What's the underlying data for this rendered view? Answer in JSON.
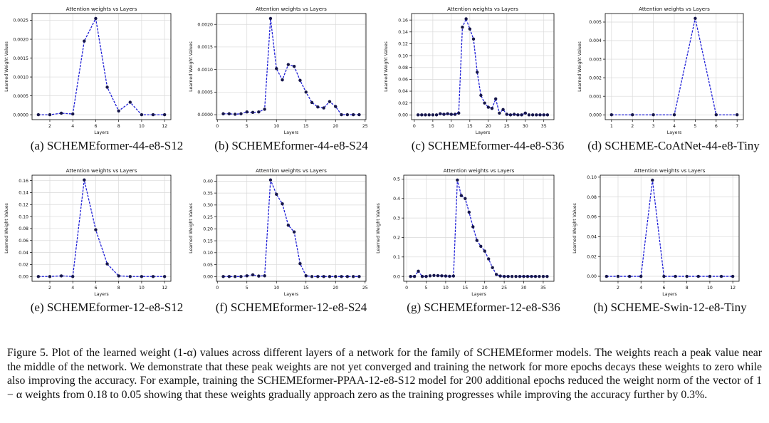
{
  "chart_data": [
    {
      "type": "line",
      "title": "Attention weights vs Layers",
      "xlabel": "Layers",
      "ylabel": "Learned Weight Values",
      "caption": "(a) SCHEMEformer-44-e8-S12",
      "xlim": [
        0.45,
        12.55
      ],
      "ylim": [
        -0.00013,
        0.00268
      ],
      "xticks": [
        2,
        4,
        6,
        8,
        10,
        12
      ],
      "xtick_labels": [
        "2",
        "4",
        "6",
        "8",
        "10",
        "12"
      ],
      "yticks": [
        0,
        0.0005,
        0.001,
        0.0015,
        0.002,
        0.0025
      ],
      "ytick_labels": [
        "0.0000",
        "0.0005",
        "0.0010",
        "0.0015",
        "0.0020",
        "0.0025"
      ],
      "x": [
        1,
        2,
        3,
        4,
        5,
        6,
        7,
        8,
        9,
        10,
        11,
        12
      ],
      "y": [
        0.0,
        0.0,
        4e-05,
        2e-05,
        0.00195,
        0.00255,
        0.00073,
        0.0001,
        0.00033,
        0.0,
        0.0,
        0.0
      ]
    },
    {
      "type": "line",
      "title": "Attention weights vs Layers",
      "xlabel": "Layers",
      "ylabel": "Learned Weight Values",
      "caption": "(b) SCHEMEformer-44-e8-S24",
      "xlim": [
        -0.15,
        25.15
      ],
      "ylim": [
        -0.00011,
        0.00224
      ],
      "xticks": [
        0,
        5,
        10,
        15,
        20,
        25
      ],
      "xtick_labels": [
        "0",
        "5",
        "10",
        "15",
        "20",
        "25"
      ],
      "yticks": [
        0,
        0.0005,
        0.001,
        0.0015,
        0.002
      ],
      "ytick_labels": [
        "0.0000",
        "0.0005",
        "0.0010",
        "0.0015",
        "0.0020"
      ],
      "x": [
        1,
        2,
        3,
        4,
        5,
        6,
        7,
        8,
        9,
        10,
        11,
        12,
        13,
        14,
        15,
        16,
        17,
        18,
        19,
        20,
        21,
        22,
        23,
        24
      ],
      "y": [
        2e-05,
        2e-05,
        1e-05,
        2e-05,
        6e-05,
        5e-05,
        6e-05,
        0.00012,
        0.00213,
        0.00102,
        0.00077,
        0.00111,
        0.00107,
        0.00076,
        0.0005,
        0.00027,
        0.00017,
        0.00015,
        0.00029,
        0.00018,
        0.0,
        0.0,
        0.0,
        0.0
      ]
    },
    {
      "type": "line",
      "title": "Attention weights vs Layers",
      "xlabel": "Layers",
      "ylabel": "Learned Weight Values",
      "caption": "(c) SCHEMEformer-44-e8-S36",
      "xlim": [
        -0.75,
        37.75
      ],
      "ylim": [
        -0.008,
        0.171
      ],
      "xticks": [
        0,
        5,
        10,
        15,
        20,
        25,
        30,
        35
      ],
      "xtick_labels": [
        "0",
        "5",
        "10",
        "15",
        "20",
        "25",
        "30",
        "35"
      ],
      "yticks": [
        0,
        0.02,
        0.04,
        0.06,
        0.08,
        0.1,
        0.12,
        0.14,
        0.16
      ],
      "ytick_labels": [
        "0.00",
        "0.02",
        "0.04",
        "0.06",
        "0.08",
        "0.10",
        "0.12",
        "0.14",
        "0.16"
      ],
      "x": [
        1,
        2,
        3,
        4,
        5,
        6,
        7,
        8,
        9,
        10,
        11,
        12,
        13,
        14,
        15,
        16,
        17,
        18,
        19,
        20,
        21,
        22,
        23,
        24,
        25,
        26,
        27,
        28,
        29,
        30,
        31,
        32,
        33,
        34,
        35,
        36
      ],
      "y": [
        0.0,
        0.0,
        0.0,
        0.0,
        0.0,
        0.0,
        0.002,
        0.001,
        0.002,
        0.001,
        0.001,
        0.003,
        0.148,
        0.162,
        0.145,
        0.128,
        0.072,
        0.033,
        0.02,
        0.013,
        0.011,
        0.027,
        0.003,
        0.009,
        0.001,
        0.0,
        0.001,
        0.0,
        0.0,
        0.003,
        0.0,
        0.0,
        0.0,
        0.0,
        0.0,
        0.0
      ]
    },
    {
      "type": "line",
      "title": "Attention weights vs Layers",
      "xlabel": "Layers",
      "ylabel": "Learned Weight Values",
      "caption": "(d) SCHEME-CoAtNet-44-e8-Tiny",
      "xlim": [
        0.7,
        7.3
      ],
      "ylim": [
        -0.00026,
        0.00546
      ],
      "xticks": [
        1,
        2,
        3,
        4,
        5,
        6,
        7
      ],
      "xtick_labels": [
        "1",
        "2",
        "3",
        "4",
        "5",
        "6",
        "7"
      ],
      "yticks": [
        0,
        0.001,
        0.002,
        0.003,
        0.004,
        0.005
      ],
      "ytick_labels": [
        "0.000",
        "0.001",
        "0.002",
        "0.003",
        "0.004",
        "0.005"
      ],
      "x": [
        1,
        2,
        3,
        4,
        5,
        6,
        7
      ],
      "y": [
        0.0,
        0.0,
        0.0,
        0.0,
        0.0052,
        0.0,
        0.0
      ]
    },
    {
      "type": "line",
      "title": "Attention weights vs Layers",
      "xlabel": "Layers",
      "ylabel": "Learned Weight Values",
      "caption": "(e) SCHEMEformer-12-e8-S12",
      "xlim": [
        0.45,
        12.55
      ],
      "ylim": [
        -0.008,
        0.169
      ],
      "xticks": [
        2,
        4,
        6,
        8,
        10,
        12
      ],
      "xtick_labels": [
        "2",
        "4",
        "6",
        "8",
        "10",
        "12"
      ],
      "yticks": [
        0,
        0.02,
        0.04,
        0.06,
        0.08,
        0.1,
        0.12,
        0.14,
        0.16
      ],
      "ytick_labels": [
        "0.00",
        "0.02",
        "0.04",
        "0.06",
        "0.08",
        "0.10",
        "0.12",
        "0.14",
        "0.16"
      ],
      "x": [
        1,
        2,
        3,
        4,
        5,
        6,
        7,
        8,
        9,
        10,
        11,
        12
      ],
      "y": [
        0.0,
        0.0,
        0.001,
        0.0,
        0.161,
        0.078,
        0.021,
        0.001,
        0.0,
        0.0,
        0.0,
        0.0
      ]
    },
    {
      "type": "line",
      "title": "Attention weights vs Layers",
      "xlabel": "Layers",
      "ylabel": "Learned Weight Values",
      "caption": "(f) SCHEMEformer-12-e8-S24",
      "xlim": [
        -0.15,
        25.15
      ],
      "ylim": [
        -0.02,
        0.425
      ],
      "xticks": [
        0,
        5,
        10,
        15,
        20,
        25
      ],
      "xtick_labels": [
        "0",
        "5",
        "10",
        "15",
        "20",
        "25"
      ],
      "yticks": [
        0,
        0.05,
        0.1,
        0.15,
        0.2,
        0.25,
        0.3,
        0.35,
        0.4
      ],
      "ytick_labels": [
        "0.00",
        "0.05",
        "0.10",
        "0.15",
        "0.20",
        "0.25",
        "0.30",
        "0.35",
        "0.40"
      ],
      "x": [
        1,
        2,
        3,
        4,
        5,
        6,
        7,
        8,
        9,
        10,
        11,
        12,
        13,
        14,
        15,
        16,
        17,
        18,
        19,
        20,
        21,
        22,
        23,
        24
      ],
      "y": [
        0.0,
        0.0,
        0.0,
        0.0,
        0.003,
        0.007,
        0.002,
        0.003,
        0.405,
        0.345,
        0.305,
        0.215,
        0.187,
        0.054,
        0.003,
        0.0,
        0.0,
        0.0,
        0.0,
        0.0,
        0.0,
        0.0,
        0.0,
        0.0
      ]
    },
    {
      "type": "line",
      "title": "Attention weights vs Layers",
      "xlabel": "Layers",
      "ylabel": "Learned Weight Values",
      "caption": "(g) SCHEMEformer-12-e8-S36",
      "xlim": [
        -0.75,
        37.75
      ],
      "ylim": [
        -0.025,
        0.52
      ],
      "xticks": [
        0,
        5,
        10,
        15,
        20,
        25,
        30,
        35
      ],
      "xtick_labels": [
        "0",
        "5",
        "10",
        "15",
        "20",
        "25",
        "30",
        "35"
      ],
      "yticks": [
        0,
        0.1,
        0.2,
        0.3,
        0.4,
        0.5
      ],
      "ytick_labels": [
        "0.0",
        "0.1",
        "0.2",
        "0.3",
        "0.4",
        "0.5"
      ],
      "x": [
        1,
        2,
        3,
        4,
        5,
        6,
        7,
        8,
        9,
        10,
        11,
        12,
        13,
        14,
        15,
        16,
        17,
        18,
        19,
        20,
        21,
        22,
        23,
        24,
        25,
        26,
        27,
        28,
        29,
        30,
        31,
        32,
        33,
        34,
        35,
        36
      ],
      "y": [
        0.0,
        0.0,
        0.027,
        0.0,
        0.0,
        0.003,
        0.005,
        0.004,
        0.003,
        0.002,
        0.001,
        0.002,
        0.495,
        0.415,
        0.4,
        0.33,
        0.255,
        0.185,
        0.155,
        0.13,
        0.09,
        0.045,
        0.01,
        0.002,
        0.0,
        0.0,
        0.0,
        0.0,
        0.0,
        0.0,
        0.0,
        0.0,
        0.0,
        0.0,
        0.0,
        0.0
      ]
    },
    {
      "type": "line",
      "title": "Attention weights vs Layers",
      "xlabel": "Layers",
      "ylabel": "Learned Weight Values",
      "caption": "(h) SCHEME-Swin-12-e8-Tiny",
      "xlim": [
        0.45,
        12.55
      ],
      "ylim": [
        -0.005,
        0.102
      ],
      "xticks": [
        2,
        4,
        6,
        8,
        10,
        12
      ],
      "xtick_labels": [
        "2",
        "4",
        "6",
        "8",
        "10",
        "12"
      ],
      "yticks": [
        0,
        0.02,
        0.04,
        0.06,
        0.08,
        0.1
      ],
      "ytick_labels": [
        "0.00",
        "0.02",
        "0.04",
        "0.06",
        "0.08",
        "0.10"
      ],
      "x": [
        1,
        2,
        3,
        4,
        5,
        6,
        7,
        8,
        9,
        10,
        11,
        12
      ],
      "y": [
        0.0,
        0.0,
        0.0,
        0.0,
        0.097,
        0.0,
        0.0,
        0.0,
        0.0,
        0.0,
        0.0,
        0.0
      ]
    }
  ],
  "caption": {
    "label": "Figure 5.",
    "text": "Plot of the learned weight (1-α) values across different layers of a network for the family of SCHEMEformer models. The weights reach a peak value near the middle of the network. We demonstrate that these peak weights are not yet converged and training the network for more epochs decays these weights to zero while also improving the accuracy. For example, training the SCHEMEformer-PPAA-12-e8-S12 model for 200 additional epochs reduced the weight norm of the vector of 1 − α weights from 0.18 to 0.05 showing that these weights gradually approach zero as the training progresses while improving the accuracy further by 0.3%."
  },
  "colors": {
    "line": "#1f1fd6",
    "marker": "#16164a",
    "grid": "#d9d9d9",
    "axis": "#000000"
  }
}
